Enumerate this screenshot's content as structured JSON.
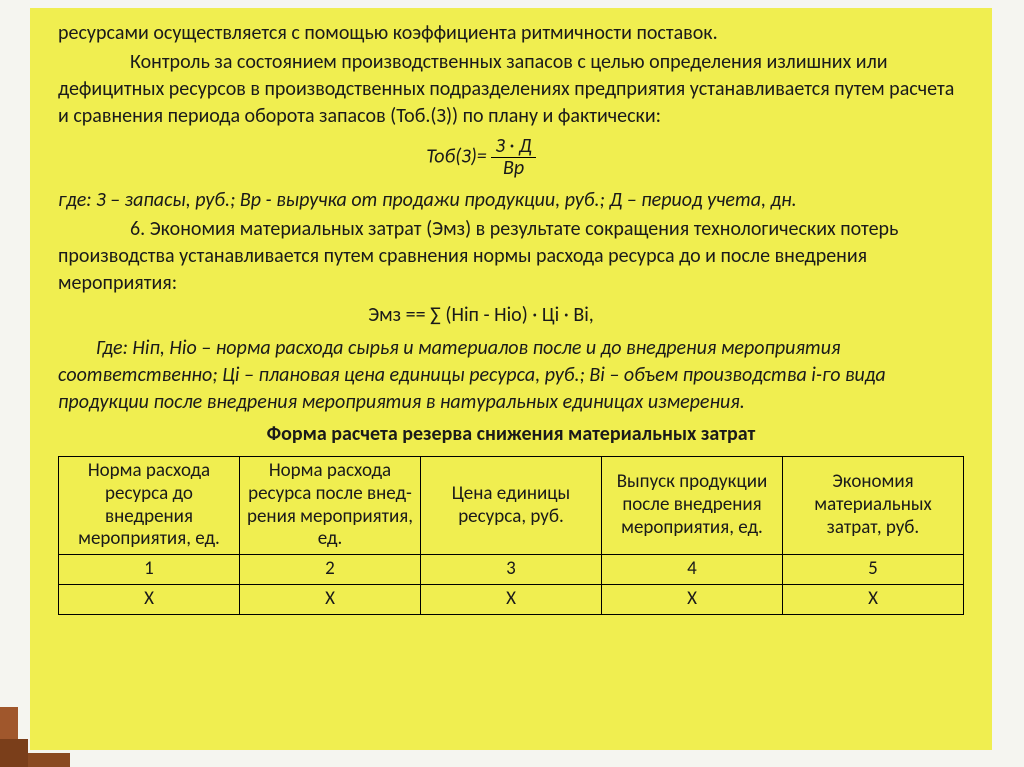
{
  "text": {
    "p1": "ресурсами  осуществляется с помощью коэффициента   ритмичности поставок.",
    "p2": "Контроль за состоянием  производственных запасов с целью  определения излишних или дефицитных  ресурсов в производственных подразделениях предприятия устанавливается путем расчета и сравнения периода оборота  запасов   (Тоб.(З)) по плану и фактически:",
    "formula1_left": "Тоб(З)=",
    "formula1_num": "З · Д",
    "formula1_den": "Вр",
    "legend1": " где: З – запасы, руб.;   Вр - выручка от продажи  продукции, руб.;   Д – период учета, дн.",
    "p3": "6. Экономия материальных  затрат (Эмз) в результате сокращения  технологических  потерь производства устанавливается  путем сравнения  нормы расхода ресурса до и после внедрения мероприятия:",
    "formula2": "Эмз == ∑ (Нiп - Нiо) · Цi · Вi,",
    "legend2": "Где: Нiп, Нiо – норма расхода сырья и материалов после и до внедрения мероприятия соответственно;  Цi – плановая цена единицы  ресурса, руб.;   Вi – объем производства i-го вида продукции после внедрения мероприятия в натуральных единицах измерения.",
    "table_title": "Форма расчета резерва снижения материальных  затрат"
  },
  "table": {
    "columns": [
      "Норма расхода ресурса  до внедрения мероприятия, ед.",
      "Норма расхода ресурса после внед-рения мероприятия, ед.",
      "Цена единицы ресурса, руб.",
      "Выпуск продукции после внедрения мероприятия, ед.",
      "Экономия материальных затрат, руб."
    ],
    "rows": [
      [
        "1",
        "2",
        "3",
        "4",
        "5"
      ],
      [
        "Х",
        "Х",
        "Х",
        "Х",
        "Х"
      ]
    ]
  },
  "style": {
    "background": "#f0ee50",
    "text_color": "#1a1a1a",
    "accent_colors": [
      "#a0572c",
      "#8a4a22",
      "#7a3e1a"
    ],
    "font_family": "Calibri",
    "body_fontsize": 20,
    "table_fontsize": 19,
    "border_color": "#000000"
  }
}
